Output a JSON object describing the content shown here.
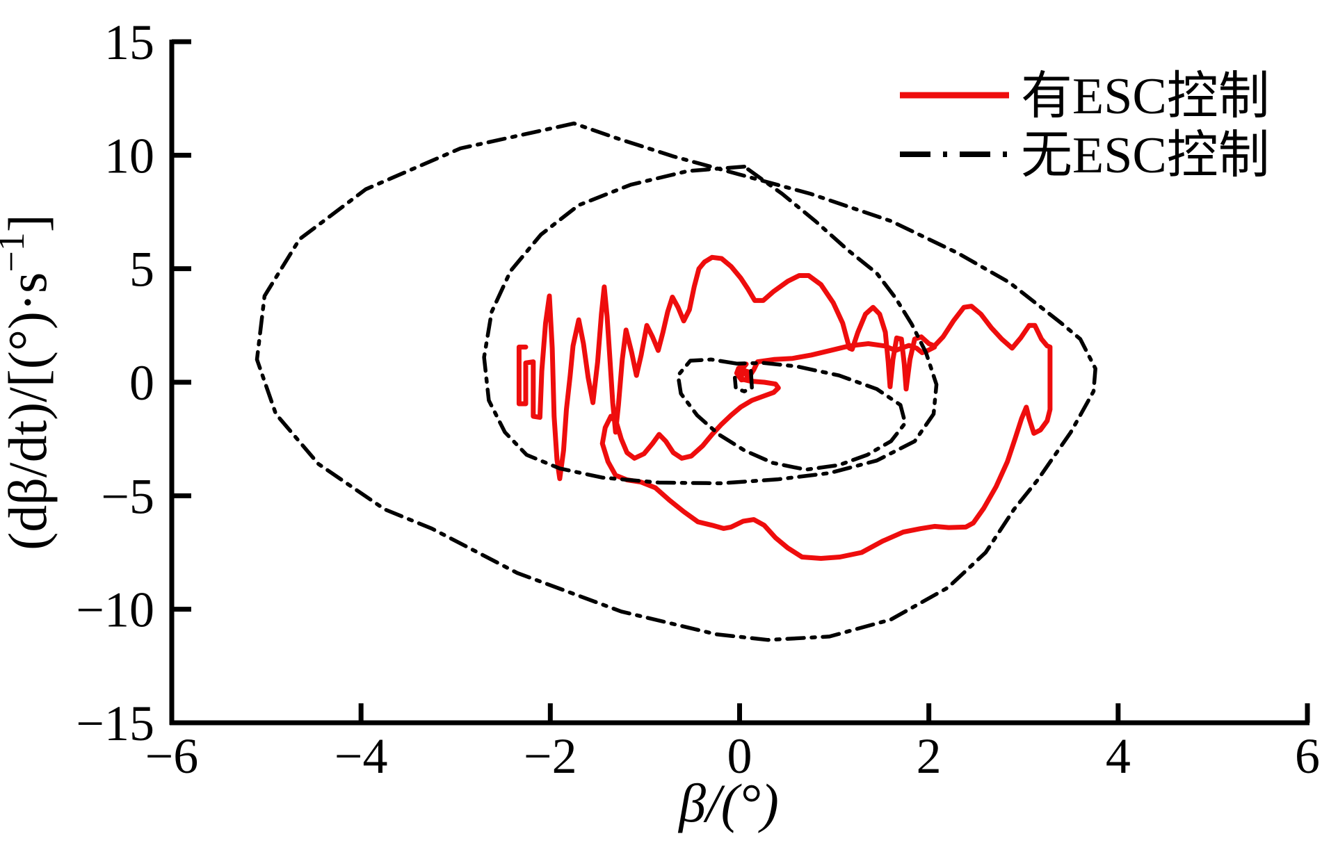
{
  "figure": {
    "background": "#ffffff",
    "xlabel": "β/(°)",
    "ylabel_main": "(dβ/dt)/[(°)·s",
    "ylabel_sup": "−1",
    "ylabel_close": "]"
  },
  "chart_data": {
    "type": "line",
    "title": "",
    "xlabel": "β/(°)",
    "ylabel": "(dβ/dt)/[(°)·s⁻¹]",
    "xlim": [
      -6,
      6
    ],
    "ylim": [
      -15,
      15
    ],
    "grid": false,
    "legend_position": "top-right",
    "xticks": [
      {
        "v": -6,
        "label": "−6"
      },
      {
        "v": -4,
        "label": "−4"
      },
      {
        "v": -2,
        "label": "−2"
      },
      {
        "v": 0,
        "label": "0"
      },
      {
        "v": 2,
        "label": "2"
      },
      {
        "v": 4,
        "label": "4"
      },
      {
        "v": 6,
        "label": "6"
      }
    ],
    "yticks": [
      {
        "v": 15,
        "label": "15"
      },
      {
        "v": 10,
        "label": "10"
      },
      {
        "v": 5,
        "label": "5"
      },
      {
        "v": 0,
        "label": "0"
      },
      {
        "v": -5,
        "label": "−5"
      },
      {
        "v": -10,
        "label": "−10"
      },
      {
        "v": -15,
        "label": "−15"
      }
    ],
    "legend": [
      {
        "label": "有ESC控制",
        "color": "#ee0d0d",
        "style": "solid"
      },
      {
        "label": "无ESC控制",
        "color": "#000000",
        "style": "dashdot"
      }
    ],
    "series": [
      {
        "name": "有ESC控制",
        "color": "#ee0d0d",
        "style": "solid",
        "points": [
          [
            -2.26,
            1.55
          ],
          [
            -2.33,
            1.55
          ],
          [
            -2.33,
            -0.95
          ],
          [
            -2.26,
            -0.95
          ],
          [
            -2.26,
            0.85
          ],
          [
            -2.18,
            0.9
          ],
          [
            -2.18,
            -1.5
          ],
          [
            -2.11,
            -1.55
          ],
          [
            -2.09,
            0.5
          ],
          [
            -2.05,
            2.6
          ],
          [
            -2.01,
            3.8
          ],
          [
            -1.98,
            1.5
          ],
          [
            -1.96,
            -1.5
          ],
          [
            -1.93,
            -3.4
          ],
          [
            -1.9,
            -4.25
          ],
          [
            -1.86,
            -3.0
          ],
          [
            -1.83,
            -1.2
          ],
          [
            -1.79,
            0.3
          ],
          [
            -1.76,
            1.6
          ],
          [
            -1.7,
            2.75
          ],
          [
            -1.65,
            1.7
          ],
          [
            -1.6,
            0.2
          ],
          [
            -1.55,
            -0.9
          ],
          [
            -1.5,
            0.9
          ],
          [
            -1.46,
            3.0
          ],
          [
            -1.43,
            4.2
          ],
          [
            -1.4,
            2.9
          ],
          [
            -1.37,
            1.0
          ],
          [
            -1.34,
            -0.9
          ],
          [
            -1.31,
            -2.2
          ],
          [
            -1.28,
            -1.0
          ],
          [
            -1.24,
            1.0
          ],
          [
            -1.2,
            2.3
          ],
          [
            -1.14,
            1.3
          ],
          [
            -1.09,
            0.3
          ],
          [
            -1.04,
            1.2
          ],
          [
            -0.98,
            2.5
          ],
          [
            -0.92,
            2.0
          ],
          [
            -0.86,
            1.4
          ],
          [
            -0.81,
            2.2
          ],
          [
            -0.76,
            3.1
          ],
          [
            -0.71,
            3.75
          ],
          [
            -0.65,
            3.3
          ],
          [
            -0.59,
            2.7
          ],
          [
            -0.53,
            3.2
          ],
          [
            -0.48,
            4.2
          ],
          [
            -0.43,
            5.0
          ],
          [
            -0.37,
            5.3
          ],
          [
            -0.29,
            5.5
          ],
          [
            -0.19,
            5.45
          ],
          [
            -0.09,
            5.1
          ],
          [
            0.01,
            4.6
          ],
          [
            0.09,
            4.1
          ],
          [
            0.16,
            3.6
          ],
          [
            0.25,
            3.6
          ],
          [
            0.36,
            4.0
          ],
          [
            0.51,
            4.45
          ],
          [
            0.63,
            4.7
          ],
          [
            0.73,
            4.7
          ],
          [
            0.86,
            4.3
          ],
          [
            0.99,
            3.5
          ],
          [
            1.09,
            2.6
          ],
          [
            1.16,
            1.5
          ],
          [
            1.19,
            1.45
          ],
          [
            1.25,
            2.2
          ],
          [
            1.33,
            3.0
          ],
          [
            1.41,
            3.3
          ],
          [
            1.48,
            3.0
          ],
          [
            1.54,
            2.2
          ],
          [
            1.57,
            0.9
          ],
          [
            1.59,
            -0.2
          ],
          [
            1.62,
            1.0
          ],
          [
            1.66,
            1.95
          ],
          [
            1.71,
            1.9
          ],
          [
            1.74,
            0.8
          ],
          [
            1.76,
            -0.3
          ],
          [
            1.8,
            1.0
          ],
          [
            1.85,
            1.9
          ],
          [
            1.92,
            2.0
          ],
          [
            2.0,
            1.7
          ],
          [
            2.06,
            1.6
          ],
          [
            2.15,
            2.0
          ],
          [
            2.26,
            2.7
          ],
          [
            2.37,
            3.3
          ],
          [
            2.45,
            3.35
          ],
          [
            2.55,
            3.0
          ],
          [
            2.66,
            2.4
          ],
          [
            2.77,
            1.9
          ],
          [
            2.88,
            1.5
          ],
          [
            2.97,
            1.95
          ],
          [
            3.06,
            2.5
          ],
          [
            3.12,
            2.5
          ],
          [
            3.19,
            1.9
          ],
          [
            3.25,
            1.6
          ],
          [
            3.28,
            1.55
          ],
          [
            3.28,
            -1.2
          ],
          [
            3.25,
            -1.7
          ],
          [
            3.18,
            -2.1
          ],
          [
            3.11,
            -2.25
          ],
          [
            3.06,
            -1.6
          ],
          [
            3.03,
            -1.1
          ],
          [
            2.98,
            -1.6
          ],
          [
            2.91,
            -2.5
          ],
          [
            2.83,
            -3.5
          ],
          [
            2.71,
            -4.6
          ],
          [
            2.58,
            -5.55
          ],
          [
            2.47,
            -6.2
          ],
          [
            2.39,
            -6.38
          ],
          [
            2.21,
            -6.4
          ],
          [
            2.06,
            -6.35
          ],
          [
            1.91,
            -6.45
          ],
          [
            1.73,
            -6.6
          ],
          [
            1.51,
            -7.0
          ],
          [
            1.29,
            -7.5
          ],
          [
            1.06,
            -7.7
          ],
          [
            0.86,
            -7.76
          ],
          [
            0.66,
            -7.7
          ],
          [
            0.51,
            -7.3
          ],
          [
            0.38,
            -6.85
          ],
          [
            0.26,
            -6.3
          ],
          [
            0.15,
            -6.05
          ],
          [
            0.04,
            -6.12
          ],
          [
            -0.09,
            -6.38
          ],
          [
            -0.17,
            -6.44
          ],
          [
            -0.29,
            -6.3
          ],
          [
            -0.44,
            -6.15
          ],
          [
            -0.59,
            -5.7
          ],
          [
            -0.74,
            -5.2
          ],
          [
            -0.89,
            -4.65
          ],
          [
            -1.04,
            -4.4
          ],
          [
            -1.19,
            -4.3
          ],
          [
            -1.31,
            -4.1
          ],
          [
            -1.39,
            -3.5
          ],
          [
            -1.45,
            -2.7
          ],
          [
            -1.42,
            -2.0
          ],
          [
            -1.36,
            -1.5
          ],
          [
            -1.3,
            -1.8
          ],
          [
            -1.25,
            -2.5
          ],
          [
            -1.19,
            -3.1
          ],
          [
            -1.11,
            -3.35
          ],
          [
            -1.01,
            -3.15
          ],
          [
            -0.92,
            -2.7
          ],
          [
            -0.85,
            -2.3
          ],
          [
            -0.78,
            -2.6
          ],
          [
            -0.7,
            -3.1
          ],
          [
            -0.61,
            -3.35
          ],
          [
            -0.51,
            -3.25
          ],
          [
            -0.39,
            -2.8
          ],
          [
            -0.29,
            -2.3
          ],
          [
            -0.19,
            -1.85
          ],
          [
            -0.09,
            -1.45
          ],
          [
            0.01,
            -1.1
          ],
          [
            0.13,
            -0.8
          ],
          [
            0.26,
            -0.6
          ],
          [
            0.36,
            -0.45
          ],
          [
            0.41,
            -0.25
          ],
          [
            0.38,
            -0.08
          ],
          [
            0.26,
            0.0
          ],
          [
            0.11,
            0.05
          ],
          [
            0.01,
            0.15
          ],
          [
            -0.03,
            0.4
          ],
          [
            -0.01,
            0.62
          ],
          [
            0.07,
            0.8
          ],
          [
            0.02,
            0.55
          ],
          [
            0.1,
            0.45
          ],
          [
            0.1,
            0.15
          ],
          [
            0.02,
            0.1
          ],
          [
            0.02,
            0.4
          ],
          [
            0.08,
            0.35
          ],
          [
            0.08,
            0.1
          ],
          [
            0.15,
            0.55
          ],
          [
            0.19,
            0.9
          ],
          [
            0.36,
            1.0
          ],
          [
            0.56,
            1.05
          ],
          [
            0.76,
            1.2
          ],
          [
            0.96,
            1.4
          ],
          [
            1.16,
            1.6
          ],
          [
            1.36,
            1.7
          ],
          [
            1.53,
            1.6
          ],
          [
            1.65,
            1.4
          ],
          [
            1.71,
            1.5
          ],
          [
            1.79,
            1.62
          ],
          [
            1.87,
            1.5
          ],
          [
            1.93,
            1.3
          ],
          [
            1.99,
            1.4
          ],
          [
            2.06,
            1.55
          ]
        ]
      },
      {
        "name": "无ESC控制",
        "color": "#000000",
        "style": "dashdot",
        "subpaths": [
          [
            [
              -1.75,
              11.4
            ],
            [
              -2.95,
              10.3
            ],
            [
              -3.95,
              8.5
            ],
            [
              -4.65,
              6.3
            ],
            [
              -5.02,
              3.8
            ],
            [
              -5.1,
              1.0
            ],
            [
              -4.9,
              -1.4
            ],
            [
              -4.45,
              -3.6
            ],
            [
              -3.75,
              -5.6
            ],
            [
              -3.25,
              -6.45
            ],
            [
              -2.35,
              -8.4
            ],
            [
              -1.25,
              -10.1
            ],
            [
              -0.25,
              -11.1
            ],
            [
              0.3,
              -11.35
            ],
            [
              0.95,
              -11.2
            ],
            [
              1.6,
              -10.45
            ],
            [
              2.2,
              -9.05
            ],
            [
              2.6,
              -7.5
            ],
            [
              2.9,
              -5.6
            ],
            [
              3.15,
              -4.3
            ],
            [
              3.5,
              -2.2
            ],
            [
              3.74,
              -0.4
            ],
            [
              3.76,
              0.6
            ],
            [
              3.6,
              1.9
            ],
            [
              3.4,
              2.6
            ],
            [
              2.85,
              4.4
            ],
            [
              2.3,
              5.7
            ],
            [
              1.6,
              7.1
            ],
            [
              0.75,
              8.3
            ],
            [
              0.0,
              9.15
            ],
            [
              -0.7,
              9.95
            ],
            [
              -1.3,
              10.75
            ],
            [
              -1.75,
              11.4
            ]
          ],
          [
            [
              0.05,
              9.5
            ],
            [
              -0.55,
              9.3
            ],
            [
              -1.15,
              8.7
            ],
            [
              -1.7,
              7.8
            ],
            [
              -2.1,
              6.5
            ],
            [
              -2.42,
              4.9
            ],
            [
              -2.62,
              3.1
            ],
            [
              -2.7,
              1.1
            ],
            [
              -2.65,
              -0.8
            ],
            [
              -2.48,
              -2.2
            ],
            [
              -2.25,
              -3.2
            ],
            [
              -1.9,
              -3.8
            ],
            [
              -1.45,
              -4.2
            ],
            [
              -0.85,
              -4.42
            ],
            [
              -0.2,
              -4.45
            ],
            [
              0.4,
              -4.28
            ],
            [
              0.95,
              -4.0
            ],
            [
              1.45,
              -3.45
            ],
            [
              1.85,
              -2.6
            ],
            [
              2.05,
              -1.4
            ],
            [
              2.08,
              -0.1
            ],
            [
              1.97,
              1.3
            ],
            [
              1.82,
              2.55
            ],
            [
              1.65,
              3.7
            ],
            [
              1.45,
              4.8
            ],
            [
              1.15,
              5.8
            ],
            [
              0.8,
              7.1
            ],
            [
              0.45,
              8.3
            ],
            [
              0.05,
              9.5
            ]
          ],
          [
            [
              -0.03,
              0.82
            ],
            [
              -0.3,
              1.0
            ],
            [
              -0.52,
              0.95
            ],
            [
              -0.65,
              0.3
            ],
            [
              -0.62,
              -0.5
            ],
            [
              -0.45,
              -1.45
            ],
            [
              -0.22,
              -2.3
            ],
            [
              0.05,
              -3.0
            ],
            [
              0.35,
              -3.55
            ],
            [
              0.7,
              -3.85
            ],
            [
              1.05,
              -3.65
            ],
            [
              1.35,
              -3.2
            ],
            [
              1.6,
              -2.6
            ],
            [
              1.75,
              -1.8
            ],
            [
              1.7,
              -1.0
            ],
            [
              1.45,
              -0.3
            ],
            [
              1.05,
              0.3
            ],
            [
              0.6,
              0.7
            ],
            [
              0.25,
              0.85
            ],
            [
              -0.03,
              0.82
            ]
          ],
          [
            [
              0.12,
              0.5
            ],
            [
              0.13,
              -0.25
            ],
            [
              0.05,
              -0.4
            ],
            [
              -0.04,
              -0.28
            ],
            [
              -0.05,
              0.2
            ]
          ]
        ]
      }
    ]
  }
}
